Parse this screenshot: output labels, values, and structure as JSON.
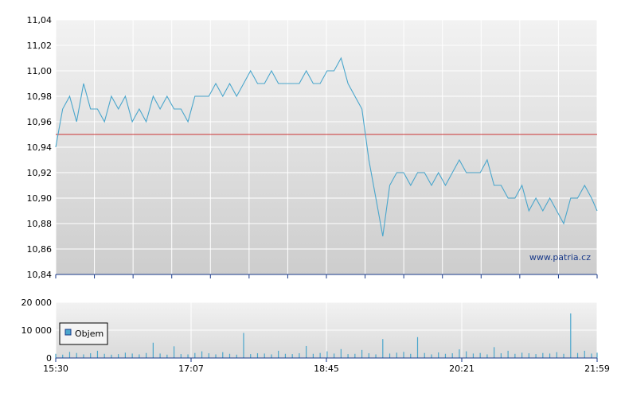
{
  "chart_data": [
    {
      "type": "line",
      "title": "",
      "xlabel": "",
      "ylabel": "",
      "ylim": [
        10.84,
        11.04
      ],
      "yticks": [
        "11,04",
        "11,02",
        "11,00",
        "10,98",
        "10,96",
        "10,94",
        "10,92",
        "10,90",
        "10,88",
        "10,86",
        "10,84"
      ],
      "ytick_values": [
        11.04,
        11.02,
        11.0,
        10.98,
        10.96,
        10.94,
        10.92,
        10.9,
        10.88,
        10.86,
        10.84
      ],
      "x_time_range": [
        "15:30",
        "21:59"
      ],
      "grid": true,
      "reference_line": {
        "value": 10.95,
        "color": "#cc3333"
      },
      "watermark": "www.patria.cz",
      "series": [
        {
          "color": "#4aa6cc",
          "x": [
            "15:30",
            "15:35",
            "15:40",
            "15:45",
            "15:50",
            "15:55",
            "16:00",
            "16:05",
            "16:10",
            "16:15",
            "16:20",
            "16:25",
            "16:30",
            "16:35",
            "16:40",
            "16:45",
            "16:50",
            "16:55",
            "17:00",
            "17:05",
            "17:10",
            "17:15",
            "17:20",
            "17:25",
            "17:30",
            "17:35",
            "17:40",
            "17:45",
            "17:50",
            "17:55",
            "18:00",
            "18:05",
            "18:10",
            "18:15",
            "18:20",
            "18:25",
            "18:30",
            "18:35",
            "18:40",
            "18:45",
            "18:50",
            "18:55",
            "19:00",
            "19:05",
            "19:10",
            "19:15",
            "19:20",
            "19:25",
            "19:30",
            "19:35",
            "19:40",
            "19:45",
            "19:50",
            "19:55",
            "20:00",
            "20:05",
            "20:10",
            "20:15",
            "20:20",
            "20:25",
            "20:30",
            "20:35",
            "20:40",
            "20:45",
            "20:50",
            "20:55",
            "21:00",
            "21:05",
            "21:10",
            "21:15",
            "21:20",
            "21:25",
            "21:30",
            "21:35",
            "21:40",
            "21:45",
            "21:50",
            "21:55",
            "21:59"
          ],
          "values": [
            10.94,
            10.97,
            10.98,
            10.96,
            10.99,
            10.97,
            10.97,
            10.96,
            10.98,
            10.97,
            10.98,
            10.96,
            10.97,
            10.96,
            10.98,
            10.97,
            10.98,
            10.97,
            10.97,
            10.96,
            10.98,
            10.98,
            10.98,
            10.99,
            10.98,
            10.99,
            10.98,
            10.99,
            11.0,
            10.99,
            10.99,
            11.0,
            10.99,
            10.99,
            10.99,
            10.99,
            11.0,
            10.99,
            10.99,
            11.0,
            11.0,
            11.01,
            10.99,
            10.98,
            10.97,
            10.93,
            10.9,
            10.87,
            10.91,
            10.92,
            10.92,
            10.91,
            10.92,
            10.92,
            10.91,
            10.92,
            10.91,
            10.92,
            10.93,
            10.92,
            10.92,
            10.92,
            10.93,
            10.91,
            10.91,
            10.9,
            10.9,
            10.91,
            10.89,
            10.9,
            10.89,
            10.9,
            10.89,
            10.88,
            10.9,
            10.9,
            10.91,
            10.9,
            10.89
          ]
        }
      ]
    },
    {
      "type": "bar",
      "title": "",
      "xlabel": "",
      "ylabel": "",
      "ylim": [
        0,
        20000
      ],
      "yticks": [
        "20 000",
        "10 000",
        "0"
      ],
      "ytick_values": [
        20000,
        10000,
        0
      ],
      "xticks": [
        "15:30",
        "17:07",
        "18:45",
        "20:21",
        "21:59"
      ],
      "legend": {
        "label": "Objem",
        "position": "left"
      },
      "grid": true,
      "series": [
        {
          "name": "Objem",
          "color": "#4aa6cc",
          "x": [
            "15:30",
            "15:35",
            "15:40",
            "15:45",
            "15:50",
            "15:55",
            "16:00",
            "16:05",
            "16:10",
            "16:15",
            "16:20",
            "16:25",
            "16:30",
            "16:35",
            "16:40",
            "16:45",
            "16:50",
            "16:55",
            "17:00",
            "17:05",
            "17:10",
            "17:15",
            "17:20",
            "17:25",
            "17:30",
            "17:35",
            "17:40",
            "17:45",
            "17:50",
            "17:55",
            "18:00",
            "18:05",
            "18:10",
            "18:15",
            "18:20",
            "18:25",
            "18:30",
            "18:35",
            "18:40",
            "18:45",
            "18:50",
            "18:55",
            "19:00",
            "19:05",
            "19:10",
            "19:15",
            "19:20",
            "19:25",
            "19:30",
            "19:35",
            "19:40",
            "19:45",
            "19:50",
            "19:55",
            "20:00",
            "20:05",
            "20:10",
            "20:15",
            "20:20",
            "20:25",
            "20:30",
            "20:35",
            "20:40",
            "20:45",
            "20:50",
            "20:55",
            "21:00",
            "21:05",
            "21:10",
            "21:15",
            "21:20",
            "21:25",
            "21:30",
            "21:35",
            "21:40",
            "21:45",
            "21:50",
            "21:55",
            "21:59"
          ],
          "values": [
            1500,
            1200,
            2200,
            1800,
            1300,
            1700,
            2600,
            1500,
            1200,
            1400,
            1900,
            1600,
            1300,
            1800,
            5500,
            1600,
            1200,
            4200,
            1400,
            1300,
            1800,
            2400,
            1700,
            1300,
            2100,
            1500,
            1200,
            9000,
            1400,
            1700,
            1600,
            1300,
            2600,
            1500,
            1400,
            1700,
            4300,
            1500,
            1800,
            2400,
            1600,
            3200,
            1400,
            1500,
            2900,
            1700,
            1300,
            6800,
            1600,
            1900,
            2200,
            1500,
            7500,
            1800,
            1300,
            2000,
            1500,
            1700,
            3100,
            2400,
            1600,
            1800,
            1300,
            3900,
            1700,
            2600,
            1500,
            1900,
            1700,
            1400,
            1800,
            1600,
            2100,
            1500,
            16000,
            1800,
            2600,
            1600,
            1900
          ]
        }
      ]
    }
  ]
}
